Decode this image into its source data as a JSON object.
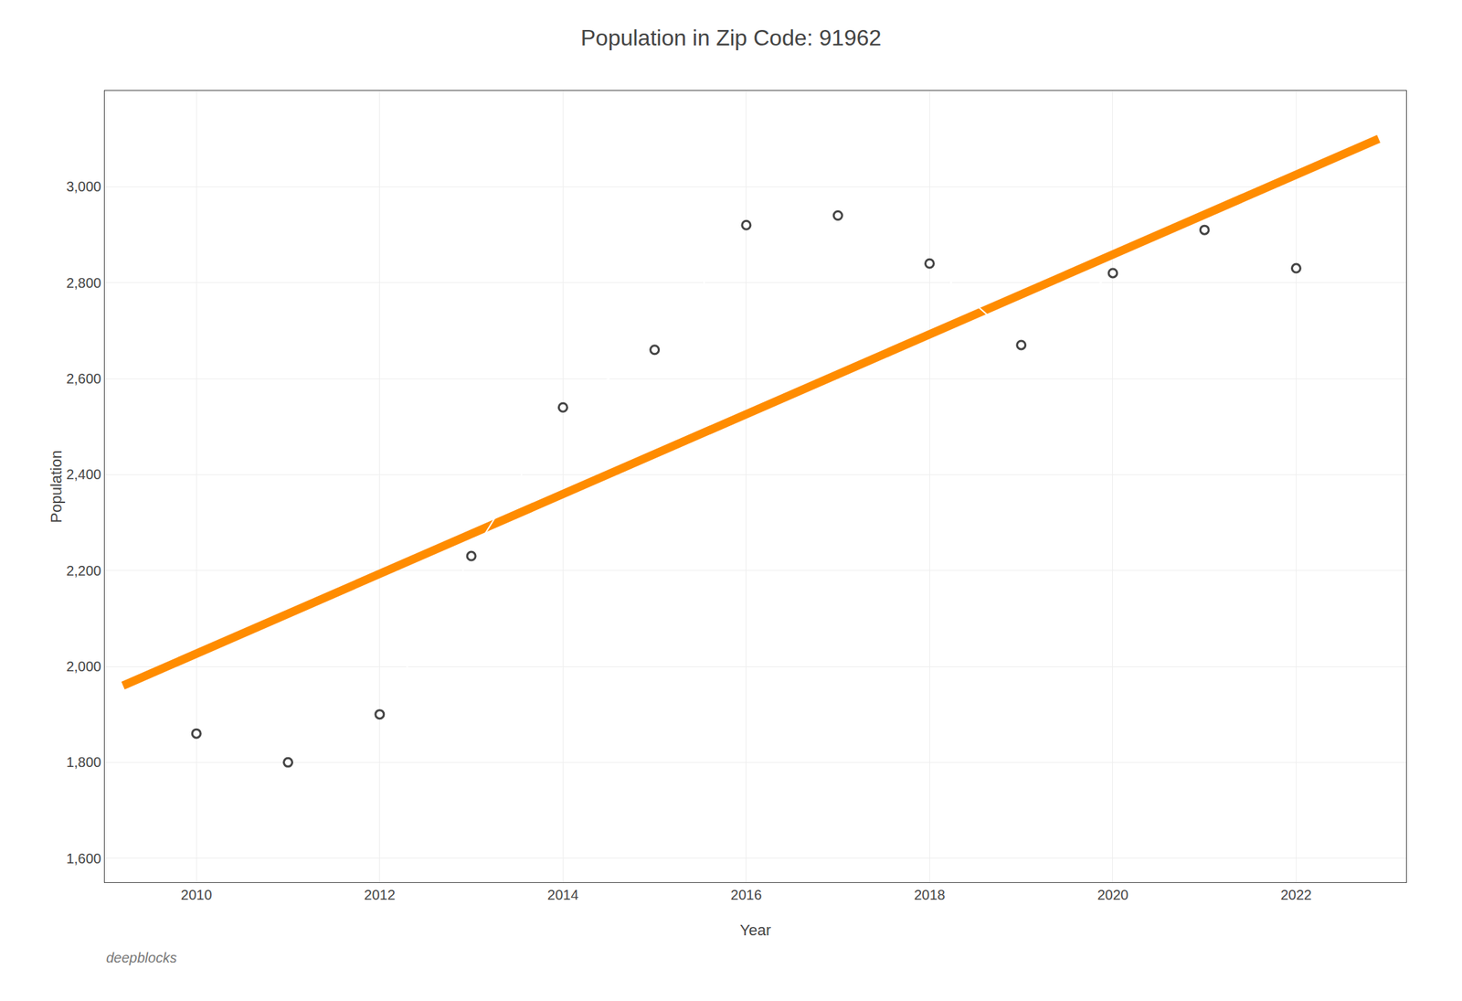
{
  "chart_data": {
    "type": "line",
    "title": "Population in Zip Code: 91962",
    "xlabel": "Year",
    "ylabel": "Population",
    "series": [
      {
        "type": "line",
        "x": [
          2009.2,
          2022.9
        ],
        "values": [
          1960,
          3100
        ],
        "color": "#ff8c00"
      },
      {
        "type": "line",
        "marker": "circle",
        "x": [
          2010,
          2011,
          2012,
          2013,
          2014,
          2015,
          2016,
          2017,
          2018,
          2019,
          2020,
          2021,
          2022
        ],
        "values": [
          1860,
          1800,
          1900,
          2230,
          2540,
          2660,
          2920,
          2940,
          2840,
          2670,
          2820,
          2910,
          2830
        ]
      }
    ],
    "xlim": [
      2009.0,
      2023.2
    ],
    "ylim": [
      1550,
      3200
    ],
    "xticks": [
      2010,
      2012,
      2014,
      2016,
      2018,
      2020,
      2022
    ],
    "yticks": [
      {
        "value": 1600,
        "label": "1,600"
      },
      {
        "value": 1800,
        "label": "1,800"
      },
      {
        "value": 2000,
        "label": "2,000"
      },
      {
        "value": 2200,
        "label": "2,200"
      },
      {
        "value": 2400,
        "label": "2,400"
      },
      {
        "value": 2600,
        "label": "2,600"
      },
      {
        "value": 2800,
        "label": "2,800"
      },
      {
        "value": 3000,
        "label": "3,000"
      }
    ],
    "grid": true,
    "annotations": [
      {
        "text": "deepblocks"
      }
    ]
  }
}
